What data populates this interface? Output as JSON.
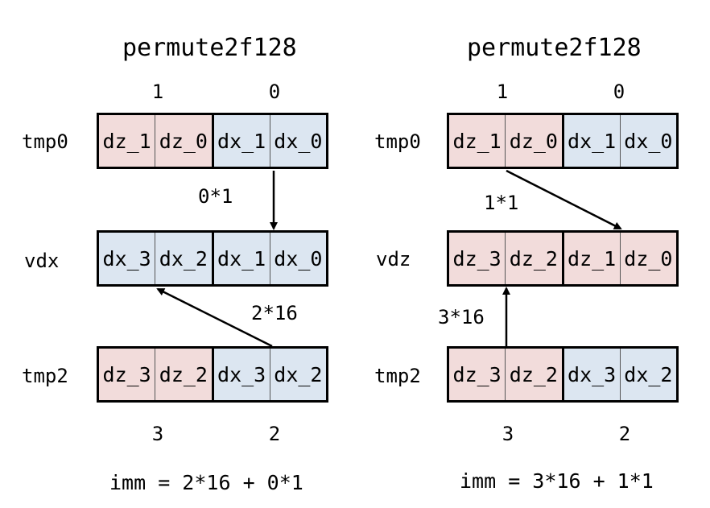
{
  "panels": [
    {
      "title": "permute2f128",
      "top_lanes": [
        "1",
        "0"
      ],
      "bottom_lanes": [
        "3",
        "2"
      ],
      "registers": [
        {
          "label": "tmp0",
          "cells": [
            "dz_1",
            "dz_0",
            "dx_1",
            "dx_0"
          ],
          "colors": [
            "pink",
            "pink",
            "blue",
            "blue"
          ]
        },
        {
          "label": "vdx",
          "cells": [
            "dx_3",
            "dx_2",
            "dx_1",
            "dx_0"
          ],
          "colors": [
            "blue",
            "blue",
            "blue",
            "blue"
          ]
        },
        {
          "label": "tmp2",
          "cells": [
            "dz_3",
            "dz_2",
            "dx_3",
            "dx_2"
          ],
          "colors": [
            "pink",
            "pink",
            "blue",
            "blue"
          ]
        }
      ],
      "multiplier_top": "0*1",
      "multiplier_bottom": "2*16",
      "formula": "imm = 2*16 + 0*1"
    },
    {
      "title": "permute2f128",
      "top_lanes": [
        "1",
        "0"
      ],
      "bottom_lanes": [
        "3",
        "2"
      ],
      "registers": [
        {
          "label": "tmp0",
          "cells": [
            "dz_1",
            "dz_0",
            "dx_1",
            "dx_0"
          ],
          "colors": [
            "pink",
            "pink",
            "blue",
            "blue"
          ]
        },
        {
          "label": "vdz",
          "cells": [
            "dz_3",
            "dz_2",
            "dz_1",
            "dz_0"
          ],
          "colors": [
            "pink",
            "pink",
            "pink",
            "pink"
          ]
        },
        {
          "label": "tmp2",
          "cells": [
            "dz_3",
            "dz_2",
            "dx_3",
            "dx_2"
          ],
          "colors": [
            "pink",
            "pink",
            "blue",
            "blue"
          ]
        }
      ],
      "multiplier_top": "1*1",
      "multiplier_bottom": "3*16",
      "formula": "imm = 3*16 + 1*1"
    }
  ],
  "colors": {
    "pink": "#f2dcdb",
    "blue": "#dce6f1",
    "border": "#000000"
  }
}
